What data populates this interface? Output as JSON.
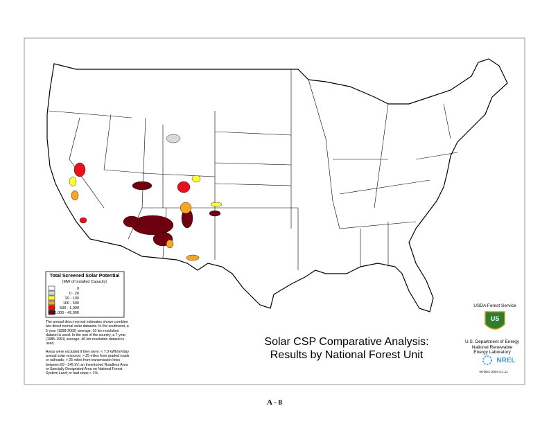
{
  "legend": {
    "title": "Total Screened Solar Potential",
    "subtitle": "(MW of Installed Capacity)",
    "items": [
      {
        "label": "0",
        "color": "#ffffff"
      },
      {
        "label": "0 -   20",
        "color": "#d9d9d9"
      },
      {
        "label": "20 -   100",
        "color": "#ffff33"
      },
      {
        "label": "100 -   500",
        "color": "#f5a623"
      },
      {
        "label": "500 -  1,000",
        "color": "#e8101a"
      },
      {
        "label": "1,000 - 45,000",
        "color": "#6e0010"
      }
    ]
  },
  "notes": [
    "The annual direct normal estimates shown combine two direct normal solar datasets.  In the southwest, a 5-year (1998-2002) average, 10 km resolution dataset is used. In the rest of the country, a 7-year (1985-1991) average, 40 km resolution dataset is used.",
    "Areas were excluded if they were: < 7.0 kWh/m²/day annual solar resource; > 25 miles from graded roads or railroads; > 25 miles from transmission lines between 69 - 345 kV; an Inventoried Roadless Area or Specially Designated Area on National Forest System Land; or had slope > 1%."
  ],
  "title": [
    "Solar CSP Comparative Analysis:",
    "Results by National Forest Unit"
  ],
  "usda": {
    "name": "USDA Forest Service",
    "logo_text": "US"
  },
  "doe": [
    "U.S. Department of Energy",
    "National Renewable",
    "Energy Laboratory"
  ],
  "nrel": {
    "logo_text": "NREL",
    "date": "06-DEC-2004  0.1.11"
  },
  "page_label": "A - 8"
}
